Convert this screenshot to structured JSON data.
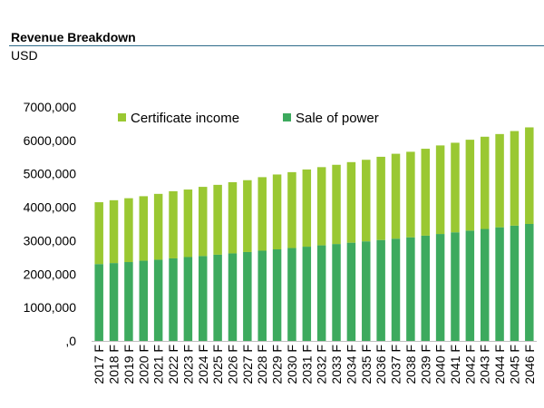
{
  "header": {
    "title": "Revenue Breakdown",
    "unit": "USD"
  },
  "colors": {
    "sale_of_power": "#3daa5e",
    "certificate_income": "#9ac832",
    "title_rule": "#2e6b8a"
  },
  "chart_data": {
    "type": "bar",
    "stacked": true,
    "title": "Revenue Breakdown",
    "ylabel": "USD",
    "ylim": [
      0,
      7000000
    ],
    "yticks": [
      0,
      1000000,
      2000000,
      3000000,
      4000000,
      5000000,
      6000000,
      7000000
    ],
    "ytick_labels": [
      ",0",
      "1000,000",
      "2000,000",
      "3000,000",
      "4000,000",
      "5000,000",
      "6000,000",
      "7000,000"
    ],
    "grid": false,
    "legend_position": "top",
    "categories": [
      "2017 F",
      "2018 F",
      "2019 F",
      "2020 F",
      "2021 F",
      "2022 F",
      "2023 F",
      "2024 F",
      "2025 F",
      "2026 F",
      "2027 F",
      "2028 F",
      "2029 F",
      "2030 F",
      "2031 F",
      "2032 F",
      "2033 F",
      "2034 F",
      "2035 F",
      "2036 F",
      "2037 F",
      "2038 F",
      "2039 F",
      "2040 F",
      "2041 F",
      "2042 F",
      "2043 F",
      "2044 F",
      "2045 F",
      "2046 F"
    ],
    "series": [
      {
        "name": "Sale of power",
        "color": "#3daa5e",
        "values": [
          2300000,
          2330000,
          2360000,
          2400000,
          2430000,
          2470000,
          2510000,
          2540000,
          2580000,
          2620000,
          2660000,
          2700000,
          2740000,
          2780000,
          2820000,
          2860000,
          2900000,
          2940000,
          2980000,
          3020000,
          3060000,
          3100000,
          3150000,
          3200000,
          3250000,
          3300000,
          3350000,
          3400000,
          3450000,
          3500000
        ]
      },
      {
        "name": "Certificate income",
        "color": "#9ac832",
        "values": [
          1850000,
          1880000,
          1910000,
          1930000,
          1970000,
          2010000,
          2020000,
          2070000,
          2090000,
          2130000,
          2150000,
          2200000,
          2240000,
          2270000,
          2310000,
          2340000,
          2370000,
          2410000,
          2440000,
          2490000,
          2540000,
          2560000,
          2600000,
          2650000,
          2680000,
          2720000,
          2760000,
          2790000,
          2830000,
          2890000
        ]
      }
    ]
  }
}
